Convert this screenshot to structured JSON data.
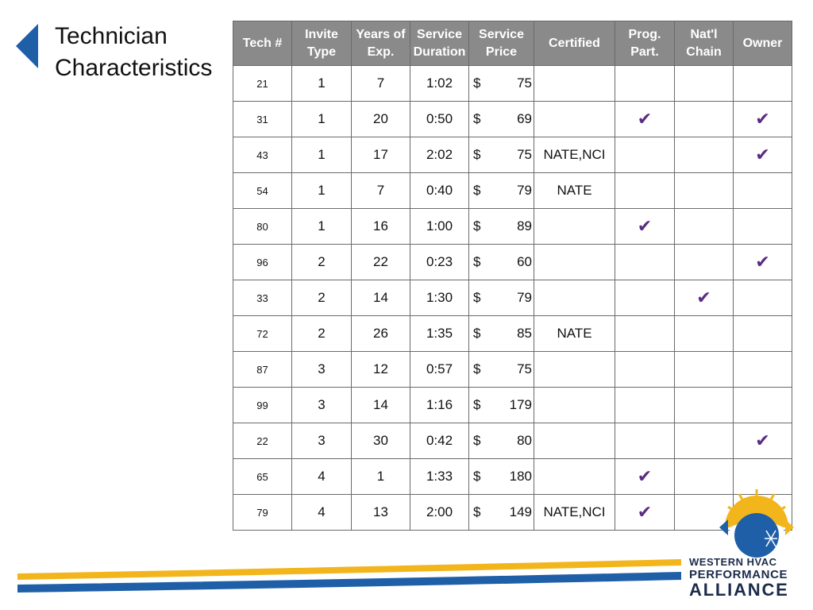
{
  "title": {
    "line1": "Technician",
    "line2": "Characteristics"
  },
  "table": {
    "headers": [
      [
        "Tech #"
      ],
      [
        "Invite",
        "Type"
      ],
      [
        "Years of",
        "Exp."
      ],
      [
        "Service",
        "Duration"
      ],
      [
        "Service",
        "Price"
      ],
      [
        "Certified"
      ],
      [
        "Prog.",
        "Part."
      ],
      [
        "Nat'l",
        "Chain"
      ],
      [
        "Owner"
      ]
    ],
    "currency_symbol": "$",
    "check_mark": "✔",
    "rows": [
      {
        "tech": "21",
        "invite": "1",
        "years": "7",
        "duration": "1:02",
        "price": "75",
        "certified": "",
        "prog": false,
        "chain": false,
        "owner": false
      },
      {
        "tech": "31",
        "invite": "1",
        "years": "20",
        "duration": "0:50",
        "price": "69",
        "certified": "",
        "prog": true,
        "chain": false,
        "owner": true
      },
      {
        "tech": "43",
        "invite": "1",
        "years": "17",
        "duration": "2:02",
        "price": "75",
        "certified": "NATE,NCI",
        "prog": false,
        "chain": false,
        "owner": true
      },
      {
        "tech": "54",
        "invite": "1",
        "years": "7",
        "duration": "0:40",
        "price": "79",
        "certified": "NATE",
        "prog": false,
        "chain": false,
        "owner": false
      },
      {
        "tech": "80",
        "invite": "1",
        "years": "16",
        "duration": "1:00",
        "price": "89",
        "certified": "",
        "prog": true,
        "chain": false,
        "owner": false
      },
      {
        "tech": "96",
        "invite": "2",
        "years": "22",
        "duration": "0:23",
        "price": "60",
        "certified": "",
        "prog": false,
        "chain": false,
        "owner": true
      },
      {
        "tech": "33",
        "invite": "2",
        "years": "14",
        "duration": "1:30",
        "price": "79",
        "certified": "",
        "prog": false,
        "chain": true,
        "owner": false
      },
      {
        "tech": "72",
        "invite": "2",
        "years": "26",
        "duration": "1:35",
        "price": "85",
        "certified": "NATE",
        "prog": false,
        "chain": false,
        "owner": false
      },
      {
        "tech": "87",
        "invite": "3",
        "years": "12",
        "duration": "0:57",
        "price": "75",
        "certified": "",
        "prog": false,
        "chain": false,
        "owner": false
      },
      {
        "tech": "99",
        "invite": "3",
        "years": "14",
        "duration": "1:16",
        "price": "179",
        "certified": "",
        "prog": false,
        "chain": false,
        "owner": false
      },
      {
        "tech": "22",
        "invite": "3",
        "years": "30",
        "duration": "0:42",
        "price": "80",
        "certified": "",
        "prog": false,
        "chain": false,
        "owner": true
      },
      {
        "tech": "65",
        "invite": "4",
        "years": "1",
        "duration": "1:33",
        "price": "180",
        "certified": "",
        "prog": true,
        "chain": false,
        "owner": false
      },
      {
        "tech": "79",
        "invite": "4",
        "years": "13",
        "duration": "2:00",
        "price": "149",
        "certified": "NATE,NCI",
        "prog": true,
        "chain": false,
        "owner": false
      }
    ]
  },
  "logo": {
    "line1": "WESTERN HVAC",
    "line2": "PERFORMANCE",
    "line3": "ALLIANCE"
  },
  "colors": {
    "header_bg": "#8a8a8a",
    "check": "#5a2d82",
    "accent_blue": "#1f5fa8",
    "accent_yellow": "#f2b51c",
    "logo_navy": "#1b2b4a"
  },
  "icons": {
    "back": "back-arrow-icon",
    "logo": "sun-snowflake-logo-icon"
  }
}
